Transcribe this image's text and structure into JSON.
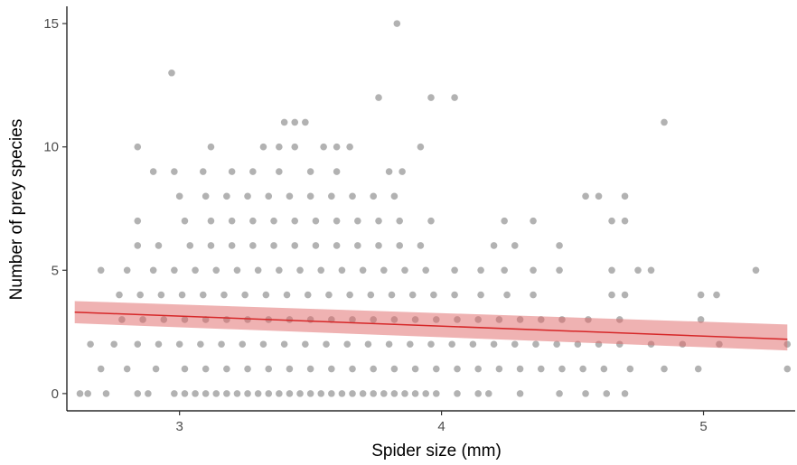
{
  "chart_data": {
    "type": "scatter",
    "title": "",
    "xlabel": "Spider size (mm)",
    "ylabel": "Number of prey species",
    "xlim": [
      2.57,
      5.35
    ],
    "ylim": [
      -0.7,
      15.7
    ],
    "x_ticks": [
      3,
      4,
      5
    ],
    "y_ticks": [
      0,
      5,
      10,
      15
    ],
    "x_tick_labels": [
      "3",
      "4",
      "5"
    ],
    "y_tick_labels": [
      "0",
      "5",
      "10",
      "15"
    ],
    "grid": false,
    "point_color": "#000000",
    "point_opacity": 0.3,
    "fit_color": "#d62728",
    "ribbon_color": "#e06666",
    "series": [
      {
        "points": [
          [
            2.62,
            0
          ],
          [
            2.65,
            0
          ],
          [
            2.72,
            0
          ],
          [
            2.84,
            0
          ],
          [
            2.88,
            0
          ],
          [
            2.98,
            0
          ],
          [
            3.02,
            0
          ],
          [
            3.06,
            0
          ],
          [
            3.1,
            0
          ],
          [
            3.14,
            0
          ],
          [
            3.18,
            0
          ],
          [
            3.22,
            0
          ],
          [
            3.26,
            0
          ],
          [
            3.3,
            0
          ],
          [
            3.34,
            0
          ],
          [
            3.38,
            0
          ],
          [
            3.42,
            0
          ],
          [
            3.46,
            0
          ],
          [
            3.5,
            0
          ],
          [
            3.54,
            0
          ],
          [
            3.58,
            0
          ],
          [
            3.62,
            0
          ],
          [
            3.66,
            0
          ],
          [
            3.7,
            0
          ],
          [
            3.74,
            0
          ],
          [
            3.78,
            0
          ],
          [
            3.82,
            0
          ],
          [
            3.86,
            0
          ],
          [
            3.9,
            0
          ],
          [
            3.94,
            0
          ],
          [
            3.98,
            0
          ],
          [
            4.06,
            0
          ],
          [
            4.14,
            0
          ],
          [
            4.18,
            0
          ],
          [
            4.3,
            0
          ],
          [
            4.45,
            0
          ],
          [
            4.55,
            0
          ],
          [
            4.63,
            0
          ],
          [
            4.7,
            0
          ],
          [
            2.7,
            1
          ],
          [
            2.8,
            1
          ],
          [
            2.91,
            1
          ],
          [
            3.02,
            1
          ],
          [
            3.1,
            1
          ],
          [
            3.18,
            1
          ],
          [
            3.26,
            1
          ],
          [
            3.34,
            1
          ],
          [
            3.42,
            1
          ],
          [
            3.5,
            1
          ],
          [
            3.58,
            1
          ],
          [
            3.66,
            1
          ],
          [
            3.74,
            1
          ],
          [
            3.82,
            1
          ],
          [
            3.9,
            1
          ],
          [
            3.98,
            1
          ],
          [
            4.06,
            1
          ],
          [
            4.14,
            1
          ],
          [
            4.22,
            1
          ],
          [
            4.3,
            1
          ],
          [
            4.38,
            1
          ],
          [
            4.46,
            1
          ],
          [
            4.54,
            1
          ],
          [
            4.62,
            1
          ],
          [
            4.72,
            1
          ],
          [
            4.85,
            1
          ],
          [
            4.98,
            1
          ],
          [
            5.32,
            1
          ],
          [
            2.66,
            2
          ],
          [
            2.75,
            2
          ],
          [
            2.84,
            2
          ],
          [
            2.92,
            2
          ],
          [
            3,
            2
          ],
          [
            3.08,
            2
          ],
          [
            3.16,
            2
          ],
          [
            3.24,
            2
          ],
          [
            3.32,
            2
          ],
          [
            3.4,
            2
          ],
          [
            3.48,
            2
          ],
          [
            3.56,
            2
          ],
          [
            3.64,
            2
          ],
          [
            3.72,
            2
          ],
          [
            3.8,
            2
          ],
          [
            3.88,
            2
          ],
          [
            3.96,
            2
          ],
          [
            4.04,
            2
          ],
          [
            4.12,
            2
          ],
          [
            4.2,
            2
          ],
          [
            4.28,
            2
          ],
          [
            4.36,
            2
          ],
          [
            4.44,
            2
          ],
          [
            4.52,
            2
          ],
          [
            4.6,
            2
          ],
          [
            4.68,
            2
          ],
          [
            4.8,
            2
          ],
          [
            4.92,
            2
          ],
          [
            5.06,
            2
          ],
          [
            5.32,
            2
          ],
          [
            2.78,
            3
          ],
          [
            2.86,
            3
          ],
          [
            2.94,
            3
          ],
          [
            3.02,
            3
          ],
          [
            3.1,
            3
          ],
          [
            3.18,
            3
          ],
          [
            3.26,
            3
          ],
          [
            3.34,
            3
          ],
          [
            3.42,
            3
          ],
          [
            3.5,
            3
          ],
          [
            3.58,
            3
          ],
          [
            3.66,
            3
          ],
          [
            3.74,
            3
          ],
          [
            3.82,
            3
          ],
          [
            3.9,
            3
          ],
          [
            3.98,
            3
          ],
          [
            4.06,
            3
          ],
          [
            4.14,
            3
          ],
          [
            4.22,
            3
          ],
          [
            4.3,
            3
          ],
          [
            4.38,
            3
          ],
          [
            4.46,
            3
          ],
          [
            4.56,
            3
          ],
          [
            4.68,
            3
          ],
          [
            4.99,
            3
          ],
          [
            2.77,
            4
          ],
          [
            2.85,
            4
          ],
          [
            2.93,
            4
          ],
          [
            3.01,
            4
          ],
          [
            3.09,
            4
          ],
          [
            3.17,
            4
          ],
          [
            3.25,
            4
          ],
          [
            3.33,
            4
          ],
          [
            3.41,
            4
          ],
          [
            3.49,
            4
          ],
          [
            3.57,
            4
          ],
          [
            3.65,
            4
          ],
          [
            3.73,
            4
          ],
          [
            3.81,
            4
          ],
          [
            3.89,
            4
          ],
          [
            3.97,
            4
          ],
          [
            4.05,
            4
          ],
          [
            4.15,
            4
          ],
          [
            4.25,
            4
          ],
          [
            4.35,
            4
          ],
          [
            4.65,
            4
          ],
          [
            4.7,
            4
          ],
          [
            4.99,
            4
          ],
          [
            5.05,
            4
          ],
          [
            2.7,
            5
          ],
          [
            2.8,
            5
          ],
          [
            2.9,
            5
          ],
          [
            2.98,
            5
          ],
          [
            3.06,
            5
          ],
          [
            3.14,
            5
          ],
          [
            3.22,
            5
          ],
          [
            3.3,
            5
          ],
          [
            3.38,
            5
          ],
          [
            3.46,
            5
          ],
          [
            3.54,
            5
          ],
          [
            3.62,
            5
          ],
          [
            3.7,
            5
          ],
          [
            3.78,
            5
          ],
          [
            3.86,
            5
          ],
          [
            3.94,
            5
          ],
          [
            4.05,
            5
          ],
          [
            4.15,
            5
          ],
          [
            4.24,
            5
          ],
          [
            4.35,
            5
          ],
          [
            4.45,
            5
          ],
          [
            4.65,
            5
          ],
          [
            4.75,
            5
          ],
          [
            4.8,
            5
          ],
          [
            5.2,
            5
          ],
          [
            2.84,
            6
          ],
          [
            2.92,
            6
          ],
          [
            3.04,
            6
          ],
          [
            3.12,
            6
          ],
          [
            3.2,
            6
          ],
          [
            3.28,
            6
          ],
          [
            3.36,
            6
          ],
          [
            3.44,
            6
          ],
          [
            3.52,
            6
          ],
          [
            3.6,
            6
          ],
          [
            3.68,
            6
          ],
          [
            3.76,
            6
          ],
          [
            3.84,
            6
          ],
          [
            3.92,
            6
          ],
          [
            4.2,
            6
          ],
          [
            4.28,
            6
          ],
          [
            4.45,
            6
          ],
          [
            2.84,
            7
          ],
          [
            3.02,
            7
          ],
          [
            3.12,
            7
          ],
          [
            3.2,
            7
          ],
          [
            3.28,
            7
          ],
          [
            3.36,
            7
          ],
          [
            3.44,
            7
          ],
          [
            3.52,
            7
          ],
          [
            3.6,
            7
          ],
          [
            3.68,
            7
          ],
          [
            3.76,
            7
          ],
          [
            3.84,
            7
          ],
          [
            3.96,
            7
          ],
          [
            4.24,
            7
          ],
          [
            4.35,
            7
          ],
          [
            4.65,
            7
          ],
          [
            4.7,
            7
          ],
          [
            3,
            8
          ],
          [
            3.1,
            8
          ],
          [
            3.18,
            8
          ],
          [
            3.26,
            8
          ],
          [
            3.34,
            8
          ],
          [
            3.42,
            8
          ],
          [
            3.5,
            8
          ],
          [
            3.58,
            8
          ],
          [
            3.66,
            8
          ],
          [
            3.74,
            8
          ],
          [
            3.82,
            8
          ],
          [
            4.55,
            8
          ],
          [
            4.6,
            8
          ],
          [
            4.7,
            8
          ],
          [
            2.9,
            9
          ],
          [
            2.98,
            9
          ],
          [
            3.09,
            9
          ],
          [
            3.2,
            9
          ],
          [
            3.28,
            9
          ],
          [
            3.38,
            9
          ],
          [
            3.5,
            9
          ],
          [
            3.6,
            9
          ],
          [
            3.8,
            9
          ],
          [
            3.85,
            9
          ],
          [
            2.84,
            10
          ],
          [
            3.12,
            10
          ],
          [
            3.32,
            10
          ],
          [
            3.38,
            10
          ],
          [
            3.44,
            10
          ],
          [
            3.55,
            10
          ],
          [
            3.6,
            10
          ],
          [
            3.65,
            10
          ],
          [
            3.92,
            10
          ],
          [
            3.4,
            11
          ],
          [
            3.44,
            11
          ],
          [
            3.48,
            11
          ],
          [
            4.85,
            11
          ],
          [
            3.76,
            12
          ],
          [
            3.96,
            12
          ],
          [
            4.05,
            12
          ],
          [
            2.97,
            13
          ],
          [
            3.83,
            15
          ]
        ]
      }
    ],
    "fit": {
      "x": [
        2.6,
        5.32
      ],
      "y": [
        3.3,
        2.2
      ],
      "upper": [
        3.75,
        2.8
      ],
      "lower": [
        2.85,
        1.75
      ]
    }
  }
}
